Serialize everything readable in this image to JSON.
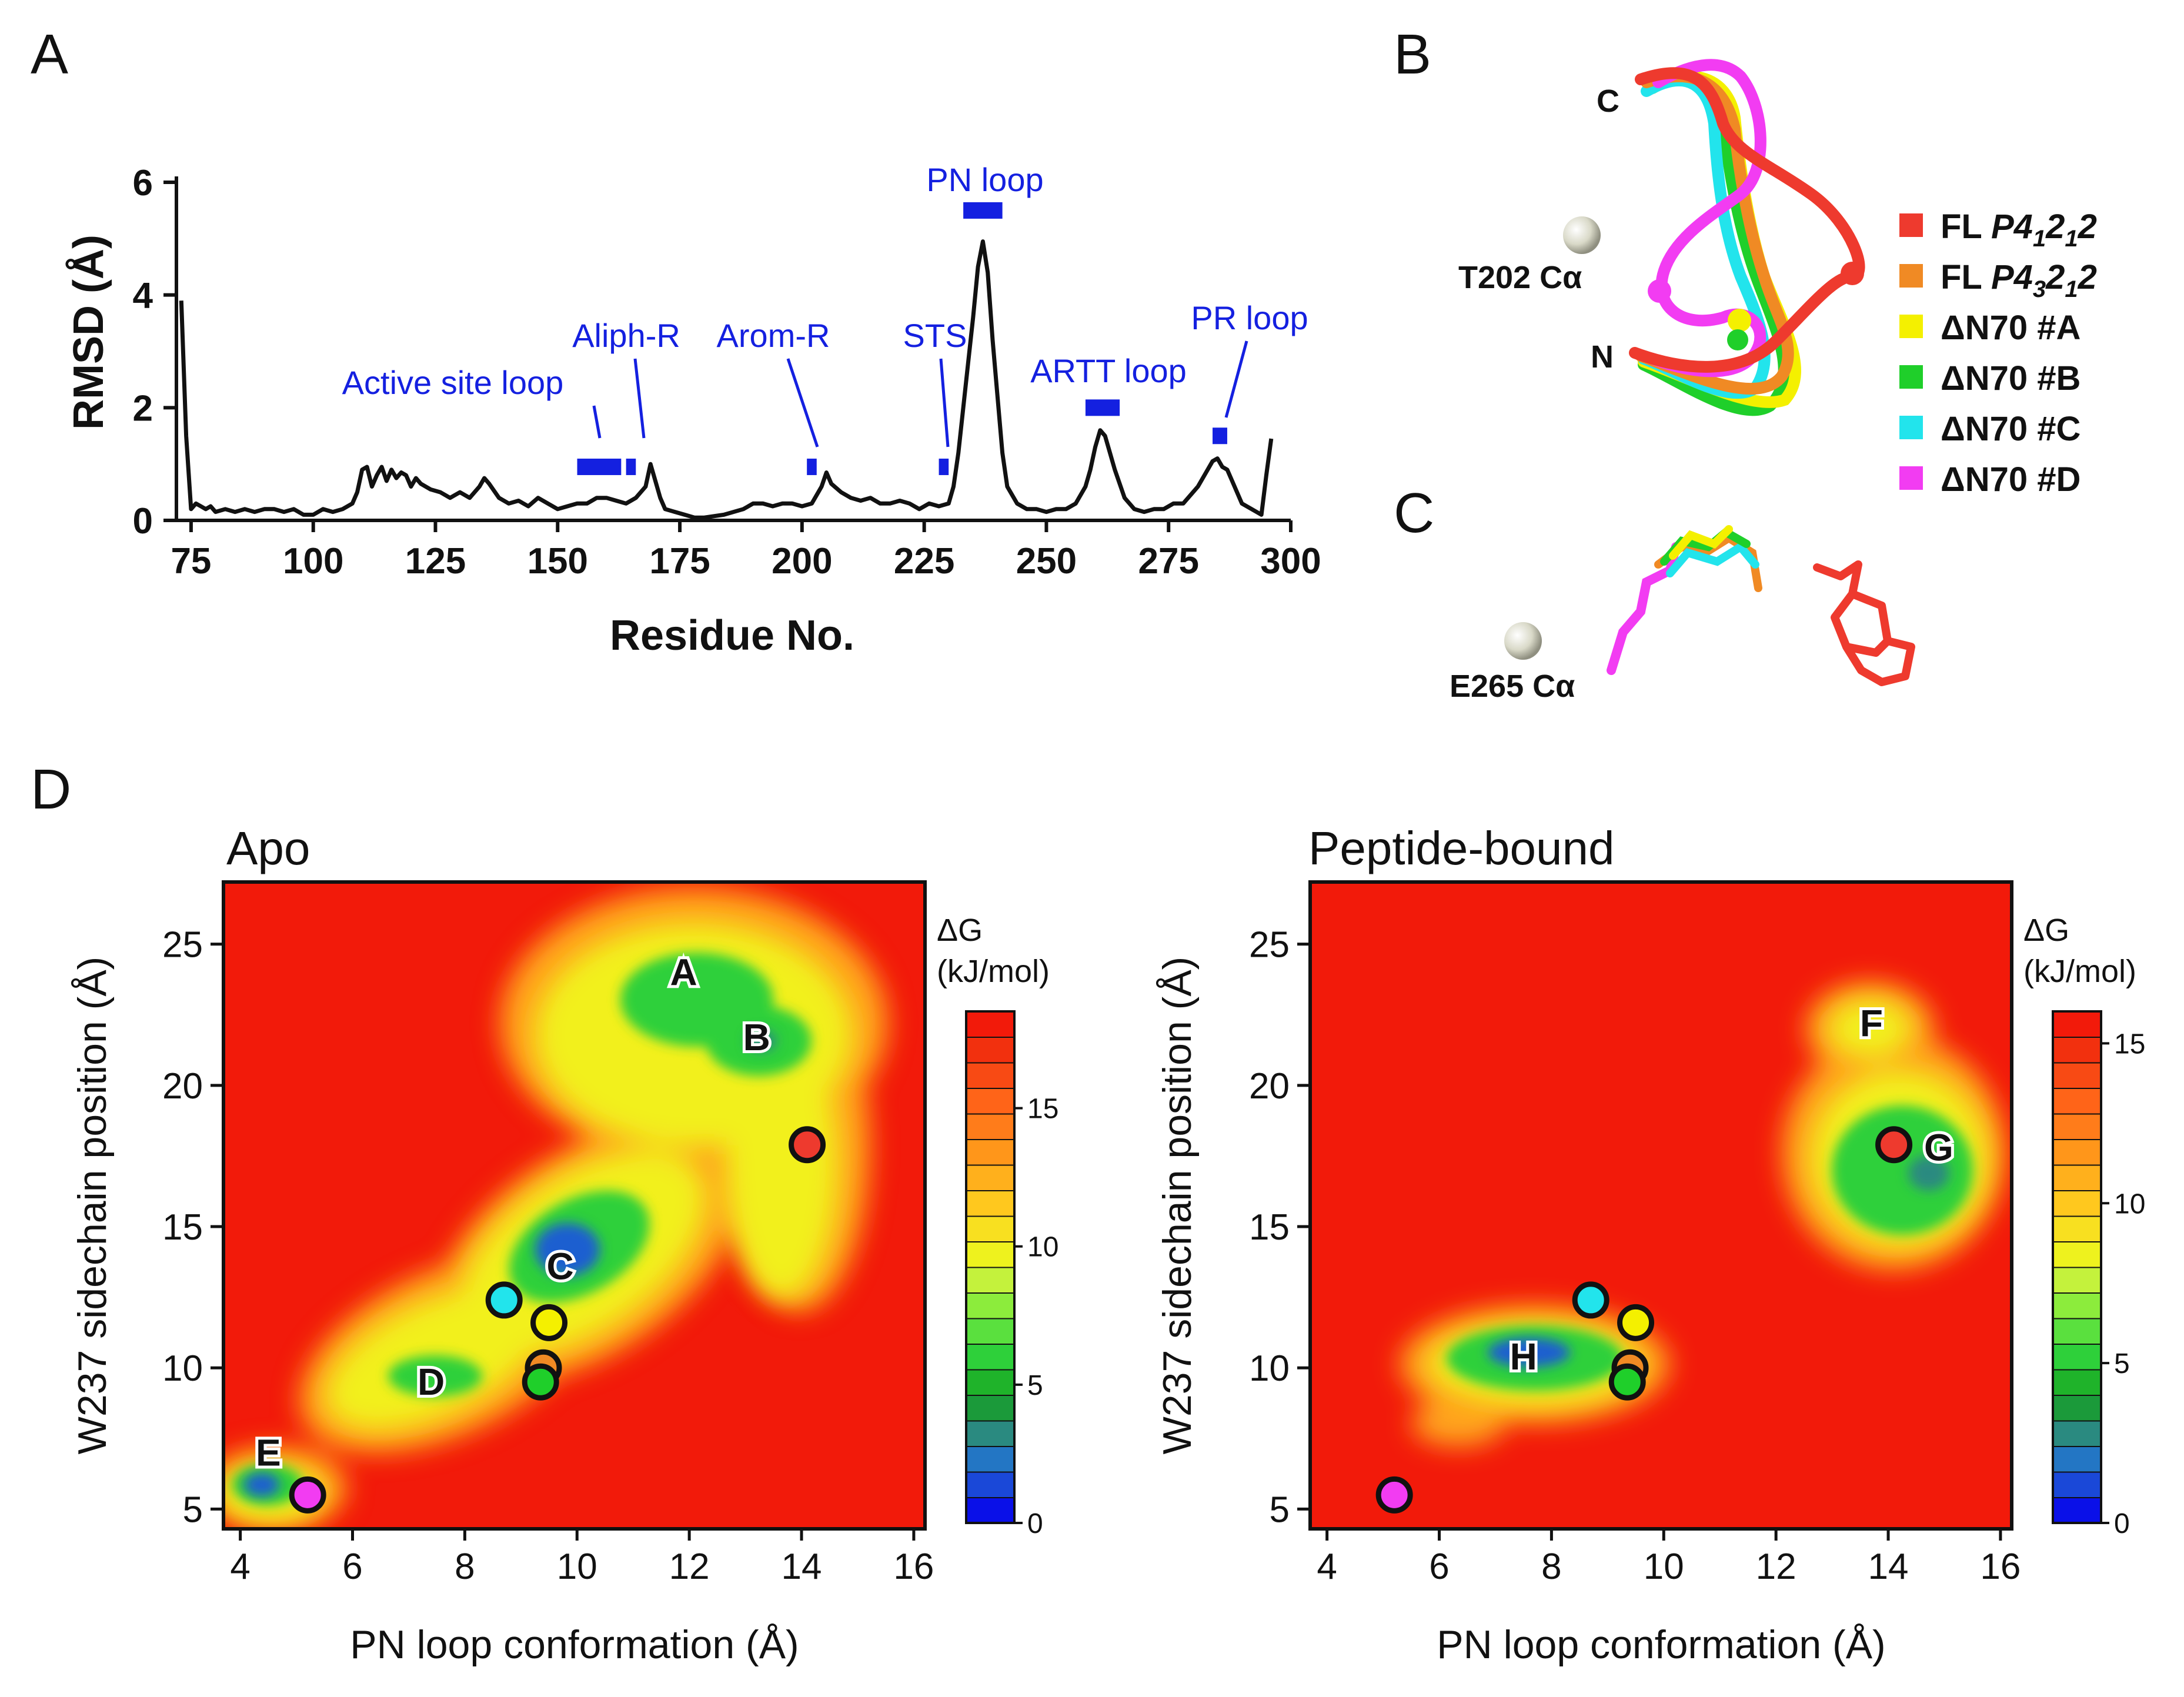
{
  "panels": {
    "A": "A",
    "B": "B",
    "C": "C",
    "D": "D"
  },
  "chart_data": [
    {
      "type": "line",
      "title": "",
      "xlabel": "Residue No.",
      "ylabel": "RMSD (Å)",
      "xlim": [
        72,
        300
      ],
      "ylim": [
        0,
        6
      ],
      "xticks": [
        75,
        100,
        125,
        150,
        175,
        200,
        225,
        250,
        275,
        300
      ],
      "yticks": [
        0,
        2,
        4,
        6
      ],
      "series": [
        {
          "name": "RMSD",
          "x": [
            73,
            74,
            75,
            76,
            77,
            78,
            79,
            80,
            82,
            84,
            86,
            88,
            90,
            92,
            94,
            96,
            98,
            100,
            102,
            104,
            106,
            108,
            109,
            110,
            111,
            112,
            113,
            114,
            115,
            116,
            117,
            118,
            119,
            120,
            121,
            122,
            124,
            126,
            128,
            130,
            132,
            134,
            135,
            136,
            138,
            140,
            142,
            144,
            146,
            148,
            150,
            152,
            154,
            156,
            158,
            160,
            162,
            164,
            166,
            168,
            169,
            170,
            171,
            172,
            174,
            176,
            178,
            180,
            184,
            188,
            190,
            192,
            194,
            196,
            198,
            200,
            202,
            204,
            205,
            206,
            208,
            210,
            212,
            214,
            216,
            218,
            220,
            222,
            224,
            226,
            228,
            230,
            231,
            232,
            233,
            234,
            235,
            236,
            237,
            238,
            239,
            240,
            241,
            242,
            244,
            246,
            248,
            250,
            252,
            254,
            256,
            258,
            259,
            260,
            261,
            262,
            263,
            264,
            266,
            268,
            270,
            272,
            274,
            276,
            278,
            280,
            281,
            282,
            283,
            284,
            285,
            286,
            287,
            288,
            290,
            292,
            294,
            295,
            296
          ],
          "values": [
            3.9,
            1.5,
            0.2,
            0.3,
            0.25,
            0.2,
            0.25,
            0.15,
            0.2,
            0.15,
            0.2,
            0.15,
            0.2,
            0.2,
            0.15,
            0.2,
            0.1,
            0.1,
            0.2,
            0.15,
            0.2,
            0.3,
            0.5,
            0.9,
            0.95,
            0.6,
            0.8,
            0.95,
            0.7,
            0.9,
            0.75,
            0.85,
            0.8,
            0.6,
            0.75,
            0.65,
            0.55,
            0.5,
            0.4,
            0.5,
            0.4,
            0.6,
            0.75,
            0.65,
            0.4,
            0.3,
            0.35,
            0.25,
            0.4,
            0.3,
            0.2,
            0.25,
            0.3,
            0.3,
            0.4,
            0.4,
            0.35,
            0.3,
            0.4,
            0.6,
            1.0,
            0.7,
            0.4,
            0.2,
            0.15,
            0.1,
            0.05,
            0.05,
            0.1,
            0.2,
            0.3,
            0.3,
            0.25,
            0.3,
            0.3,
            0.25,
            0.3,
            0.6,
            0.85,
            0.65,
            0.5,
            0.4,
            0.35,
            0.4,
            0.3,
            0.3,
            0.35,
            0.3,
            0.2,
            0.3,
            0.25,
            0.3,
            0.6,
            1.2,
            2.0,
            2.8,
            3.6,
            4.5,
            4.95,
            4.4,
            3.2,
            2.2,
            1.2,
            0.6,
            0.3,
            0.2,
            0.2,
            0.15,
            0.2,
            0.2,
            0.3,
            0.6,
            0.9,
            1.3,
            1.6,
            1.5,
            1.2,
            0.9,
            0.4,
            0.2,
            0.15,
            0.2,
            0.2,
            0.3,
            0.3,
            0.5,
            0.6,
            0.75,
            0.9,
            1.05,
            1.1,
            0.95,
            0.9,
            0.7,
            0.3,
            0.2,
            0.1,
            0.8,
            1.45
          ]
        }
      ],
      "regions": [
        {
          "label": "Active site loop",
          "start": 154,
          "end": 163
        },
        {
          "label": "Aliph-R",
          "start": 164,
          "end": 166
        },
        {
          "label": "Arom-R",
          "start": 201,
          "end": 203
        },
        {
          "label": "STS",
          "start": 228,
          "end": 230
        },
        {
          "label": "PN loop",
          "start": 233,
          "end": 241
        },
        {
          "label": "ARTT loop",
          "start": 258,
          "end": 265
        },
        {
          "label": "PR loop",
          "start": 284,
          "end": 287
        }
      ]
    },
    {
      "type": "heatmap",
      "title": "Apo",
      "xlabel": "PN loop conformation (Å)",
      "ylabel": "W237 sidechain position (Å)",
      "xlim": [
        3.7,
        16.2
      ],
      "ylim": [
        4.3,
        27.2
      ],
      "xticks": [
        4,
        6,
        8,
        10,
        12,
        14,
        16
      ],
      "yticks": [
        5,
        10,
        15,
        20,
        25
      ],
      "colorbar": {
        "title_line1": "ΔG",
        "title_line2": "(kJ/mol)",
        "min": 0,
        "max": 18.5,
        "ticks": [
          0,
          5,
          10,
          15
        ]
      },
      "basins": [
        {
          "label": "A",
          "x": 11.9,
          "y": 24.0
        },
        {
          "label": "B",
          "x": 13.2,
          "y": 21.7
        },
        {
          "label": "C",
          "x": 9.7,
          "y": 13.6
        },
        {
          "label": "D",
          "x": 7.4,
          "y": 9.5
        },
        {
          "label": "E",
          "x": 4.5,
          "y": 7.0
        }
      ],
      "structures": [
        {
          "name": "FL P4₁2₁2",
          "x": 14.1,
          "y": 17.9,
          "color": "#ee3a2e"
        },
        {
          "name": "FL P4₃2₁2",
          "x": 9.4,
          "y": 10.0,
          "color": "#f08a24"
        },
        {
          "name": "ΔN70 #A",
          "x": 9.5,
          "y": 11.6,
          "color": "#f4f000"
        },
        {
          "name": "ΔN70 #B",
          "x": 9.35,
          "y": 9.5,
          "color": "#1fcf2a"
        },
        {
          "name": "ΔN70 #C",
          "x": 8.7,
          "y": 12.4,
          "color": "#22e4ec"
        },
        {
          "name": "ΔN70 #D",
          "x": 5.2,
          "y": 5.5,
          "color": "#f23cf2"
        }
      ]
    },
    {
      "type": "heatmap",
      "title": "Peptide-bound",
      "xlabel": "PN loop conformation (Å)",
      "ylabel": "W237 sidechain position (Å)",
      "xlim": [
        3.7,
        16.2
      ],
      "ylim": [
        4.3,
        27.2
      ],
      "xticks": [
        4,
        6,
        8,
        10,
        12,
        14,
        16
      ],
      "yticks": [
        5,
        10,
        15,
        20,
        25
      ],
      "colorbar": {
        "title_line1": "ΔG",
        "title_line2": "(kJ/mol)",
        "min": 0,
        "max": 16,
        "ticks": [
          0,
          5,
          10,
          15
        ]
      },
      "basins": [
        {
          "label": "F",
          "x": 13.7,
          "y": 22.2
        },
        {
          "label": "G",
          "x": 14.9,
          "y": 17.8
        },
        {
          "label": "H",
          "x": 7.5,
          "y": 10.4
        }
      ],
      "structures": [
        {
          "name": "FL P4₁2₁2",
          "x": 14.1,
          "y": 17.9,
          "color": "#ee3a2e"
        },
        {
          "name": "FL P4₃2₁2",
          "x": 9.4,
          "y": 10.0,
          "color": "#f08a24"
        },
        {
          "name": "ΔN70 #A",
          "x": 9.5,
          "y": 11.6,
          "color": "#f4f000"
        },
        {
          "name": "ΔN70 #B",
          "x": 9.35,
          "y": 9.5,
          "color": "#1fcf2a"
        },
        {
          "name": "ΔN70 #C",
          "x": 8.7,
          "y": 12.4,
          "color": "#22e4ec"
        },
        {
          "name": "ΔN70 #D",
          "x": 5.2,
          "y": 5.5,
          "color": "#f23cf2"
        }
      ]
    }
  ],
  "legend": [
    {
      "prefix": "FL ",
      "italic": "P4",
      "sub1": "1",
      "mid": "2",
      "sub2": "1",
      "suffix": "2",
      "color": "#ee3a2e"
    },
    {
      "prefix": "FL ",
      "italic": "P4",
      "sub1": "3",
      "mid": "2",
      "sub2": "1",
      "suffix": "2",
      "color": "#f08a24"
    },
    {
      "text": "ΔN70 #A",
      "color": "#f4f000"
    },
    {
      "text": "ΔN70 #B",
      "color": "#1fcf2a"
    },
    {
      "text": "ΔN70 #C",
      "color": "#22e4ec"
    },
    {
      "text": "ΔN70 #D",
      "color": "#f23cf2"
    }
  ],
  "structure_labels": {
    "c_terminus": "C",
    "n_terminus": "N",
    "t202": "T202 Cα",
    "e265": "E265 Cα"
  }
}
